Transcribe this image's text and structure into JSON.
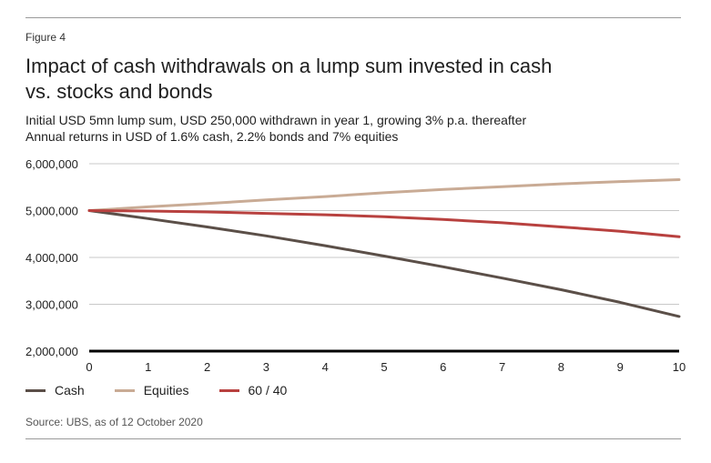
{
  "figure_label": "Figure 4",
  "title_line1": "Impact of cash withdrawals on a lump sum invested in cash",
  "title_line2": "vs. stocks and bonds",
  "subtitle_line1": "Initial USD 5mn lump sum, USD 250,000 withdrawn in year 1, growing 3% p.a. thereafter",
  "subtitle_line2": "Annual returns in USD of 1.6% cash, 2.2% bonds and 7% equities",
  "source": "Source: UBS, as of 12 October 2020",
  "chart_data": {
    "type": "line",
    "x": [
      0,
      1,
      2,
      3,
      4,
      5,
      6,
      7,
      8,
      9,
      10
    ],
    "ylim": [
      2000000,
      6000000
    ],
    "yticks": [
      "2,000,000",
      "3,000,000",
      "4,000,000",
      "5,000,000",
      "6,000,000"
    ],
    "ytick_values": [
      2000000,
      3000000,
      4000000,
      5000000,
      6000000
    ],
    "xticks": [
      "0",
      "1",
      "2",
      "3",
      "4",
      "5",
      "6",
      "7",
      "8",
      "9",
      "10"
    ],
    "grid": true,
    "legend_position": "bottom-left",
    "series": [
      {
        "name": "Cash",
        "color": "#5b4f48",
        "values": [
          5000000,
          4830000,
          4650000,
          4460000,
          4250000,
          4030000,
          3800000,
          3560000,
          3310000,
          3040000,
          2740000
        ]
      },
      {
        "name": "Equities",
        "color": "#c9ab95",
        "values": [
          5000000,
          5080000,
          5150000,
          5230000,
          5300000,
          5380000,
          5450000,
          5510000,
          5570000,
          5620000,
          5660000
        ]
      },
      {
        "name": "60 / 40",
        "color": "#b8413f",
        "values": [
          5000000,
          4990000,
          4970000,
          4940000,
          4910000,
          4870000,
          4810000,
          4740000,
          4650000,
          4560000,
          4440000
        ]
      }
    ]
  }
}
